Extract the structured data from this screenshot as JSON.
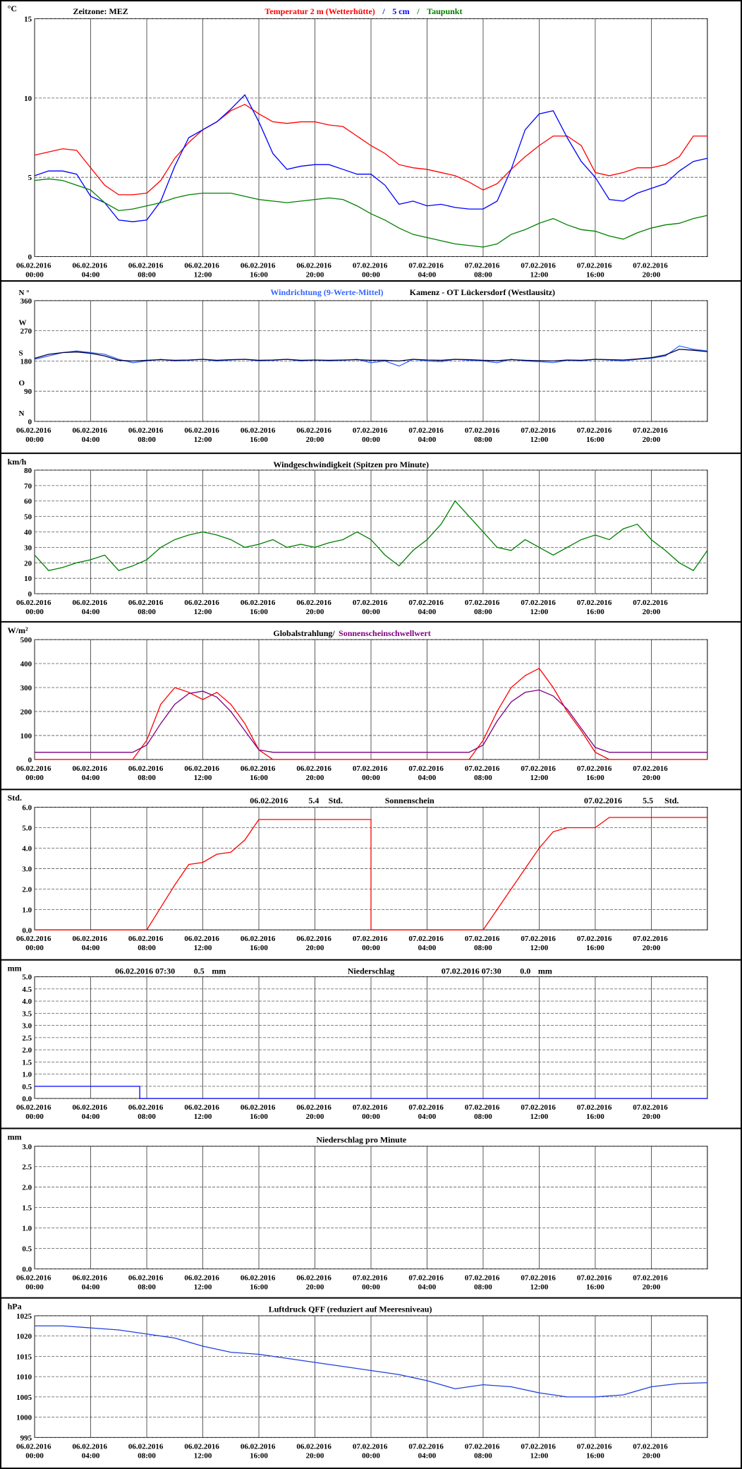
{
  "time_axis": {
    "xlim": [
      0,
      48
    ],
    "xticks": [
      {
        "value": 0,
        "label": "06.02.2016 00:00"
      },
      {
        "value": 4,
        "label": "06.02.2016 04:00"
      },
      {
        "value": 8,
        "label": "06.02.2016 08:00"
      },
      {
        "value": 12,
        "label": "06.02.2016 12:00"
      },
      {
        "value": 16,
        "label": "06.02.2016 16:00"
      },
      {
        "value": 20,
        "label": "06.02.2016 20:00"
      },
      {
        "value": 24,
        "label": "07.02.2016 00:00"
      },
      {
        "value": 28,
        "label": "07.02.2016 04:00"
      },
      {
        "value": 32,
        "label": "07.02.2016 08:00"
      },
      {
        "value": 36,
        "label": "07.02.2016 12:00"
      },
      {
        "value": 40,
        "label": "07.02.2016 16:00"
      },
      {
        "value": 44,
        "label": "07.02.2016 20:00"
      }
    ]
  },
  "chart_data": [
    {
      "type": "line",
      "unit": "°C",
      "note": "Zeitzone: MEZ",
      "title_parts": [
        {
          "text": "Temperatur 2 m (Wetterhütte)",
          "color": "#ff0000"
        },
        {
          "text": "/",
          "color": "#0000ff"
        },
        {
          "text": "5 cm",
          "color": "#0000ff"
        },
        {
          "text": "/",
          "color": "#008000"
        },
        {
          "text": "Taupunkt",
          "color": "#008000"
        }
      ],
      "ylim": [
        0,
        15
      ],
      "yticks": [
        0,
        5,
        10,
        15
      ],
      "x": [
        0,
        1,
        2,
        3,
        4,
        5,
        6,
        7,
        8,
        9,
        10,
        11,
        12,
        13,
        14,
        15,
        16,
        17,
        18,
        19,
        20,
        21,
        22,
        23,
        24,
        25,
        26,
        27,
        28,
        29,
        30,
        31,
        32,
        33,
        34,
        35,
        36,
        37,
        38,
        39,
        40,
        41,
        42,
        43,
        44,
        45,
        46,
        47,
        48
      ],
      "series": [
        {
          "name": "Temperatur 2 m (Wetterhütte)",
          "color": "#ff0000",
          "values": [
            6.4,
            6.6,
            6.8,
            6.7,
            5.6,
            4.5,
            3.9,
            3.9,
            4.0,
            4.8,
            6.2,
            7.2,
            8.0,
            8.5,
            9.2,
            9.6,
            9.0,
            8.5,
            8.4,
            8.5,
            8.5,
            8.3,
            8.2,
            7.6,
            7.0,
            6.5,
            5.8,
            5.6,
            5.5,
            5.3,
            5.1,
            4.7,
            4.2,
            4.6,
            5.5,
            6.3,
            7.0,
            7.6,
            7.6,
            7.0,
            5.3,
            5.1,
            5.3,
            5.6,
            5.6,
            5.8,
            6.3,
            7.6,
            7.6
          ]
        },
        {
          "name": "5 cm",
          "color": "#0000ff",
          "values": [
            5.1,
            5.4,
            5.4,
            5.2,
            3.8,
            3.4,
            2.3,
            2.2,
            2.3,
            3.5,
            5.7,
            7.5,
            8.0,
            8.5,
            9.3,
            10.2,
            8.5,
            6.5,
            5.5,
            5.7,
            5.8,
            5.8,
            5.5,
            5.2,
            5.2,
            4.5,
            3.3,
            3.5,
            3.2,
            3.3,
            3.1,
            3.0,
            3.0,
            3.5,
            5.5,
            8.0,
            9.0,
            9.2,
            7.5,
            6.0,
            5.0,
            3.6,
            3.5,
            4.0,
            4.3,
            4.6,
            5.4,
            6.0,
            6.2
          ]
        },
        {
          "name": "Taupunkt",
          "color": "#008000",
          "values": [
            4.8,
            4.9,
            4.8,
            4.5,
            4.2,
            3.4,
            2.9,
            3.0,
            3.2,
            3.4,
            3.7,
            3.9,
            4.0,
            4.0,
            4.0,
            3.8,
            3.6,
            3.5,
            3.4,
            3.5,
            3.6,
            3.7,
            3.6,
            3.2,
            2.7,
            2.3,
            1.8,
            1.4,
            1.2,
            1.0,
            0.8,
            0.7,
            0.6,
            0.8,
            1.4,
            1.7,
            2.1,
            2.4,
            2.0,
            1.7,
            1.6,
            1.3,
            1.1,
            1.5,
            1.8,
            2.0,
            2.1,
            2.4,
            2.6
          ]
        }
      ]
    },
    {
      "type": "line",
      "title_parts": [
        {
          "text": "Windrichtung (9-Werte-Mittel)",
          "color": "#3366ff"
        },
        {
          "text": "Kamenz - OT Lückersdorf (Westlausitz)",
          "color": "#000000"
        }
      ],
      "ylim": [
        0,
        360
      ],
      "yticks": [
        0,
        90,
        180,
        270,
        360
      ],
      "ytick_letters": [
        {
          "value": 0,
          "label": "N"
        },
        {
          "value": 90,
          "label": "O"
        },
        {
          "value": 180,
          "label": "S"
        },
        {
          "value": 270,
          "label": "W"
        },
        {
          "value": 360,
          "label": "N °"
        }
      ],
      "x": [
        0,
        1,
        2,
        3,
        4,
        5,
        6,
        7,
        8,
        9,
        10,
        11,
        12,
        13,
        14,
        15,
        16,
        17,
        18,
        19,
        20,
        21,
        22,
        23,
        24,
        25,
        26,
        27,
        28,
        29,
        30,
        31,
        32,
        33,
        34,
        35,
        36,
        37,
        38,
        39,
        40,
        41,
        42,
        43,
        44,
        45,
        46,
        47,
        48
      ],
      "series": [
        {
          "name": "Windrichtung",
          "color": "#3366ff",
          "values": [
            185,
            195,
            205,
            210,
            205,
            200,
            185,
            175,
            180,
            185,
            180,
            182,
            185,
            180,
            183,
            185,
            180,
            182,
            185,
            180,
            183,
            180,
            182,
            185,
            175,
            180,
            165,
            185,
            180,
            178,
            185,
            182,
            180,
            175,
            185,
            180,
            178,
            175,
            182,
            180,
            185,
            183,
            180,
            185,
            188,
            195,
            225,
            215,
            210
          ]
        },
        {
          "name": "9-Werte-Mittel",
          "color": "#000040",
          "values": [
            188,
            200,
            205,
            207,
            203,
            195,
            182,
            180,
            182,
            184,
            182,
            183,
            185,
            182,
            184,
            185,
            182,
            183,
            185,
            182,
            183,
            182,
            183,
            184,
            182,
            182,
            180,
            185,
            183,
            182,
            185,
            184,
            182,
            181,
            184,
            182,
            181,
            180,
            183,
            182,
            185,
            184,
            183,
            186,
            190,
            198,
            215,
            212,
            208
          ]
        }
      ]
    },
    {
      "type": "line",
      "unit": "km/h",
      "title_parts": [
        {
          "text": "Windgeschwindigkeit (Spitzen pro Minute)",
          "color": "#000000"
        }
      ],
      "ylim": [
        0,
        80
      ],
      "yticks": [
        0,
        10,
        20,
        30,
        40,
        50,
        60,
        70,
        80
      ],
      "x": [
        0,
        1,
        2,
        3,
        4,
        5,
        6,
        7,
        8,
        9,
        10,
        11,
        12,
        13,
        14,
        15,
        16,
        17,
        18,
        19,
        20,
        21,
        22,
        23,
        24,
        25,
        26,
        27,
        28,
        29,
        30,
        31,
        32,
        33,
        34,
        35,
        36,
        37,
        38,
        39,
        40,
        41,
        42,
        43,
        44,
        45,
        46,
        47,
        48
      ],
      "series": [
        {
          "name": "Windgeschwindigkeit",
          "color": "#008000",
          "values": [
            25,
            15,
            17,
            20,
            22,
            25,
            15,
            18,
            22,
            30,
            35,
            38,
            40,
            38,
            35,
            30,
            32,
            35,
            30,
            32,
            30,
            33,
            35,
            40,
            35,
            25,
            18,
            28,
            35,
            45,
            60,
            50,
            40,
            30,
            28,
            35,
            30,
            25,
            30,
            35,
            38,
            35,
            42,
            45,
            35,
            28,
            20,
            15,
            28
          ]
        }
      ]
    },
    {
      "type": "line",
      "unit": "W/m²",
      "title_parts": [
        {
          "text": "Globalstrahlung/",
          "color": "#000000"
        },
        {
          "text": "Sonnenscheinschwellwert",
          "color": "#800080"
        }
      ],
      "ylim": [
        0,
        500
      ],
      "yticks": [
        0,
        100,
        200,
        300,
        400,
        500
      ],
      "x": [
        0,
        1,
        2,
        3,
        4,
        5,
        6,
        7,
        8,
        9,
        10,
        11,
        12,
        13,
        14,
        15,
        16,
        17,
        18,
        19,
        20,
        21,
        22,
        23,
        24,
        25,
        26,
        27,
        28,
        29,
        30,
        31,
        32,
        33,
        34,
        35,
        36,
        37,
        38,
        39,
        40,
        41,
        42,
        43,
        44,
        45,
        46,
        47,
        48
      ],
      "series": [
        {
          "name": "Globalstrahlung",
          "color": "#ff0000",
          "values": [
            0,
            0,
            0,
            0,
            0,
            0,
            0,
            0,
            80,
            230,
            300,
            280,
            250,
            280,
            230,
            150,
            40,
            0,
            0,
            0,
            0,
            0,
            0,
            0,
            0,
            0,
            0,
            0,
            0,
            0,
            0,
            0,
            80,
            200,
            300,
            350,
            380,
            300,
            200,
            120,
            30,
            0,
            0,
            0,
            0,
            0,
            0,
            0,
            0
          ]
        },
        {
          "name": "Sonnenscheinschwellwert",
          "color": "#800080",
          "values": [
            30,
            30,
            30,
            30,
            30,
            30,
            30,
            30,
            60,
            150,
            230,
            275,
            285,
            260,
            200,
            120,
            40,
            30,
            30,
            30,
            30,
            30,
            30,
            30,
            30,
            30,
            30,
            30,
            30,
            30,
            30,
            30,
            60,
            160,
            240,
            280,
            290,
            265,
            210,
            130,
            50,
            30,
            30,
            30,
            30,
            30,
            30,
            30,
            30
          ]
        }
      ]
    },
    {
      "type": "line",
      "unit": "Std.",
      "title_parts": [
        {
          "text": "06.02.2016",
          "color": "#000000"
        },
        {
          "text": "5.4",
          "color": "#000000"
        },
        {
          "text": "Std.",
          "color": "#000000"
        },
        {
          "text": "Sonnenschein",
          "color": "#000000"
        },
        {
          "text": "07.02.2016",
          "color": "#000000"
        },
        {
          "text": "5.5",
          "color": "#000000"
        },
        {
          "text": "Std.",
          "color": "#000000"
        }
      ],
      "ylim": [
        0,
        6
      ],
      "yticks": [
        {
          "value": 0,
          "label": "0.0"
        },
        {
          "value": 1,
          "label": "1.0"
        },
        {
          "value": 2,
          "label": "2.0"
        },
        {
          "value": 3,
          "label": "3.0"
        },
        {
          "value": 4,
          "label": "4.0"
        },
        {
          "value": 5,
          "label": "5.0"
        },
        {
          "value": 6,
          "label": "6.0"
        }
      ],
      "x": [
        0,
        8,
        9,
        10,
        11,
        12,
        13,
        14,
        15,
        16,
        24,
        24,
        32,
        33,
        34,
        35,
        36,
        37,
        38,
        40,
        41,
        48
      ],
      "series": [
        {
          "name": "Sonnenschein",
          "color": "#ff0000",
          "values": [
            0,
            0,
            1.1,
            2.2,
            3.2,
            3.3,
            3.7,
            3.8,
            4.4,
            5.4,
            5.4,
            0,
            0,
            1.0,
            2.0,
            3.0,
            4.0,
            4.8,
            5.0,
            5.0,
            5.5,
            5.5
          ]
        }
      ]
    },
    {
      "type": "line",
      "unit": "mm",
      "title_parts": [
        {
          "text": "06.02.2016 07:30",
          "color": "#000000"
        },
        {
          "text": "0.5",
          "color": "#000000"
        },
        {
          "text": "mm",
          "color": "#000000"
        },
        {
          "text": "Niederschlag",
          "color": "#000000"
        },
        {
          "text": "07.02.2016 07:30",
          "color": "#000000"
        },
        {
          "text": "0.0",
          "color": "#000000"
        },
        {
          "text": "mm",
          "color": "#000000"
        }
      ],
      "ylim": [
        0,
        5
      ],
      "yticks": [
        {
          "value": 0,
          "label": "0.0"
        },
        {
          "value": 0.5,
          "label": "0.5"
        },
        {
          "value": 1,
          "label": "1.0"
        },
        {
          "value": 1.5,
          "label": "1.5"
        },
        {
          "value": 2,
          "label": "2.0"
        },
        {
          "value": 2.5,
          "label": "2.5"
        },
        {
          "value": 3,
          "label": "3.0"
        },
        {
          "value": 3.5,
          "label": "3.5"
        },
        {
          "value": 4,
          "label": "4.0"
        },
        {
          "value": 4.5,
          "label": "4.5"
        },
        {
          "value": 5,
          "label": "5.0"
        }
      ],
      "x": [
        0,
        7.5,
        7.5,
        48
      ],
      "series": [
        {
          "name": "Niederschlag",
          "color": "#0000ff",
          "values": [
            0.5,
            0.5,
            0,
            0
          ]
        }
      ]
    },
    {
      "type": "line",
      "unit": "mm",
      "title_parts": [
        {
          "text": "Niederschlag pro Minute",
          "color": "#000000"
        }
      ],
      "ylim": [
        0,
        3
      ],
      "yticks": [
        {
          "value": 0,
          "label": "0.0"
        },
        {
          "value": 0.5,
          "label": "0.5"
        },
        {
          "value": 1,
          "label": "1.0"
        },
        {
          "value": 1.5,
          "label": "1.5"
        },
        {
          "value": 2,
          "label": "2.0"
        },
        {
          "value": 2.5,
          "label": "2.5"
        },
        {
          "value": 3,
          "label": "3.0"
        }
      ],
      "series": []
    },
    {
      "type": "line",
      "unit": "hPa",
      "title_parts": [
        {
          "text": "Luftdruck QFF (reduziert auf Meeresniveau)",
          "color": "#000000"
        }
      ],
      "ylim": [
        995,
        1025
      ],
      "yticks": [
        995,
        1000,
        1005,
        1010,
        1015,
        1020,
        1025
      ],
      "x": [
        0,
        2,
        4,
        6,
        8,
        10,
        12,
        14,
        16,
        18,
        20,
        22,
        24,
        26,
        28,
        30,
        32,
        34,
        36,
        38,
        40,
        42,
        44,
        46,
        48
      ],
      "series": [
        {
          "name": "Luftdruck",
          "color": "#2040e0",
          "values": [
            1022.5,
            1022.5,
            1022,
            1021.5,
            1020.5,
            1019.5,
            1017.5,
            1016,
            1015.5,
            1014.5,
            1013.5,
            1012.5,
            1011.5,
            1010.5,
            1009,
            1007,
            1008,
            1007.5,
            1006,
            1005,
            1005,
            1005.5,
            1007.5,
            1008.3,
            1008.5
          ]
        }
      ]
    }
  ]
}
